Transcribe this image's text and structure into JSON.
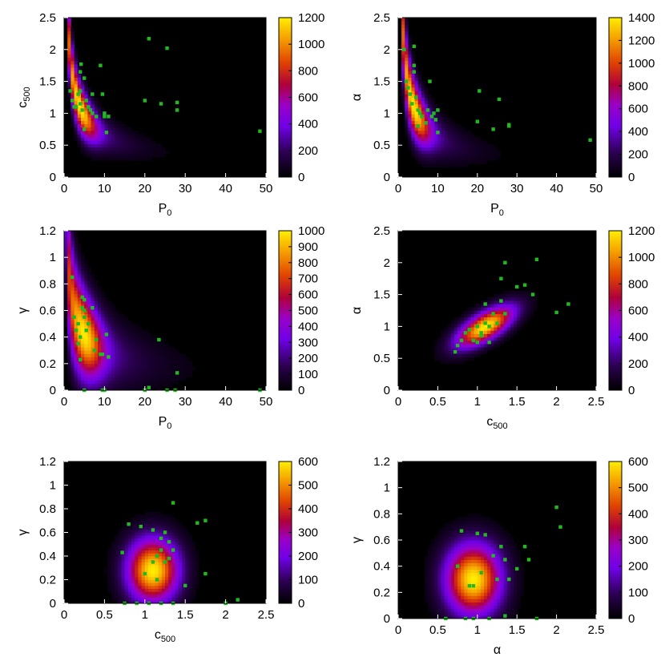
{
  "chart_data": [
    {
      "type": "heatmap",
      "xlabel": "P",
      "xlabel_sub": "0",
      "ylabel": "c",
      "ylabel_sub": "500",
      "xlim": [
        0,
        50
      ],
      "ylim": [
        0,
        2.5
      ],
      "xticks": [
        "0",
        "10",
        "20",
        "30",
        "40",
        "50"
      ],
      "yticks": [
        "0",
        "0.5",
        "1",
        "1.5",
        "2",
        "2.5"
      ],
      "colorbar": {
        "min": 0,
        "max": 1200,
        "ticks": [
          "0",
          "200",
          "400",
          "600",
          "800",
          "1000",
          "1200"
        ]
      },
      "density": {
        "shape": "curve_power",
        "center": [
          4.0,
          1.1
        ],
        "width": [
          2.6,
          0.2
        ],
        "tail": 0.55
      },
      "points": [
        [
          1.5,
          1.35
        ],
        [
          2,
          1.2
        ],
        [
          2.5,
          1.1
        ],
        [
          3,
          1.1
        ],
        [
          3.5,
          1.3
        ],
        [
          4,
          1.15
        ],
        [
          4,
          1.35
        ],
        [
          4,
          1.65
        ],
        [
          4.2,
          1.77
        ],
        [
          4.5,
          1.05
        ],
        [
          5,
          1.55
        ],
        [
          5,
          0.75
        ],
        [
          5.5,
          1.2
        ],
        [
          6,
          1.1
        ],
        [
          6.5,
          1.05
        ],
        [
          7,
          1.3
        ],
        [
          7,
          1.0
        ],
        [
          8,
          0.95
        ],
        [
          9,
          1.75
        ],
        [
          9.5,
          1.3
        ],
        [
          10,
          1.0
        ],
        [
          10,
          0.95
        ],
        [
          10.5,
          0.7
        ],
        [
          11,
          0.95
        ],
        [
          20,
          1.2
        ],
        [
          21,
          2.17
        ],
        [
          24,
          1.15
        ],
        [
          25.5,
          2.02
        ],
        [
          28,
          1.05
        ],
        [
          28,
          1.17
        ],
        [
          48.5,
          0.72
        ]
      ]
    },
    {
      "type": "heatmap",
      "xlabel": "P",
      "xlabel_sub": "0",
      "ylabel": "α",
      "ylabel_sub": "",
      "xlim": [
        0,
        50
      ],
      "ylim": [
        0,
        2.5
      ],
      "xticks": [
        "0",
        "10",
        "20",
        "30",
        "40",
        "50"
      ],
      "yticks": [
        "0",
        "0.5",
        "1",
        "1.5",
        "2",
        "2.5"
      ],
      "colorbar": {
        "min": 0,
        "max": 1400,
        "ticks": [
          "0",
          "200",
          "400",
          "600",
          "800",
          "1000",
          "1200",
          "1400"
        ]
      },
      "density": {
        "shape": "curve_power",
        "center": [
          4.0,
          1.1
        ],
        "width": [
          2.6,
          0.25
        ],
        "tail": 0.6
      },
      "points": [
        [
          1.5,
          2.0
        ],
        [
          2,
          1.5
        ],
        [
          2.5,
          1.4
        ],
        [
          3,
          1.3
        ],
        [
          3.5,
          1.15
        ],
        [
          4,
          1.65
        ],
        [
          4,
          1.75
        ],
        [
          4,
          2.05
        ],
        [
          4.5,
          1.25
        ],
        [
          5,
          0.8
        ],
        [
          5,
          1.05
        ],
        [
          5.5,
          1.0
        ],
        [
          6,
          0.95
        ],
        [
          7,
          0.85
        ],
        [
          7.5,
          1.05
        ],
        [
          8,
          1.5
        ],
        [
          8.5,
          0.95
        ],
        [
          9,
          1.0
        ],
        [
          9.5,
          0.9
        ],
        [
          10,
          0.7
        ],
        [
          10,
          1.05
        ],
        [
          20,
          0.87
        ],
        [
          20.5,
          1.35
        ],
        [
          24,
          0.75
        ],
        [
          25.5,
          1.22
        ],
        [
          28,
          0.8
        ],
        [
          28,
          0.82
        ],
        [
          48.5,
          0.58
        ]
      ]
    },
    {
      "type": "heatmap",
      "xlabel": "P",
      "xlabel_sub": "0",
      "ylabel": "γ",
      "ylabel_sub": "",
      "xlim": [
        0,
        50
      ],
      "ylim": [
        0,
        1.2
      ],
      "xticks": [
        "0",
        "10",
        "20",
        "30",
        "40",
        "50"
      ],
      "yticks": [
        "0",
        "0.2",
        "0.4",
        "0.6",
        "0.8",
        "1",
        "1.2"
      ],
      "colorbar": {
        "min": 0,
        "max": 1000,
        "ticks": [
          "0",
          "100",
          "200",
          "300",
          "400",
          "500",
          "600",
          "700",
          "800",
          "900",
          "1000"
        ]
      },
      "density": {
        "shape": "curve_gamma",
        "center": [
          5.0,
          0.42
        ],
        "width": [
          3.0,
          0.17
        ],
        "tail": 0.5
      },
      "points": [
        [
          2,
          0.85
        ],
        [
          2.5,
          0.55
        ],
        [
          3,
          0.45
        ],
        [
          3.5,
          0.5
        ],
        [
          3.5,
          0.35
        ],
        [
          4,
          0.4
        ],
        [
          4,
          0.23
        ],
        [
          4.5,
          0.7
        ],
        [
          4.5,
          0.62
        ],
        [
          5,
          0.68
        ],
        [
          5,
          0.6
        ],
        [
          5,
          0.55
        ],
        [
          5,
          0.0
        ],
        [
          5.5,
          0.45
        ],
        [
          6,
          0.5
        ],
        [
          7,
          0.62
        ],
        [
          7.5,
          0.3
        ],
        [
          8,
          0.38
        ],
        [
          9,
          0.27
        ],
        [
          9.5,
          0.27
        ],
        [
          9.5,
          0.0
        ],
        [
          10,
          0.0
        ],
        [
          10.5,
          0.42
        ],
        [
          11,
          0.25
        ],
        [
          20,
          0.0
        ],
        [
          21,
          0.02
        ],
        [
          23.5,
          0.38
        ],
        [
          25.5,
          0.0
        ],
        [
          27.5,
          0.0
        ],
        [
          28,
          0.13
        ],
        [
          48.5,
          0.0
        ]
      ]
    },
    {
      "type": "heatmap",
      "xlabel": "c",
      "xlabel_sub": "500",
      "ylabel": "α",
      "ylabel_sub": "",
      "xlim": [
        0,
        2.5
      ],
      "ylim": [
        0,
        2.5
      ],
      "xticks": [
        "0",
        "0.5",
        "1",
        "1.5",
        "2",
        "2.5"
      ],
      "yticks": [
        "0",
        "0.5",
        "1",
        "1.5",
        "2",
        "2.5"
      ],
      "colorbar": {
        "min": 0,
        "max": 1200,
        "ticks": [
          "0",
          "200",
          "400",
          "600",
          "800",
          "1000",
          "1200"
        ]
      },
      "density": {
        "shape": "tilted",
        "center": [
          1.1,
          1.0
        ],
        "width": [
          0.28,
          0.12
        ],
        "angle": 40
      },
      "points": [
        [
          0.72,
          0.6
        ],
        [
          0.75,
          0.7
        ],
        [
          0.8,
          0.78
        ],
        [
          0.85,
          0.9
        ],
        [
          0.9,
          0.95
        ],
        [
          0.95,
          0.78
        ],
        [
          1.0,
          0.75
        ],
        [
          1.0,
          1.0
        ],
        [
          1.05,
          0.9
        ],
        [
          1.05,
          0.85
        ],
        [
          1.1,
          1.05
        ],
        [
          1.1,
          1.35
        ],
        [
          1.15,
          1.0
        ],
        [
          1.15,
          0.75
        ],
        [
          1.2,
          1.2
        ],
        [
          1.25,
          1.05
        ],
        [
          1.3,
          1.4
        ],
        [
          1.3,
          1.75
        ],
        [
          1.35,
          1.2
        ],
        [
          1.35,
          2.0
        ],
        [
          1.5,
          1.62
        ],
        [
          1.6,
          1.65
        ],
        [
          1.7,
          1.5
        ],
        [
          1.75,
          2.05
        ],
        [
          2.0,
          1.22
        ],
        [
          2.15,
          1.35
        ]
      ]
    },
    {
      "type": "heatmap",
      "xlabel": "c",
      "xlabel_sub": "500",
      "ylabel": "γ",
      "ylabel_sub": "",
      "xlim": [
        0,
        2.5
      ],
      "ylim": [
        0,
        1.2
      ],
      "xticks": [
        "0",
        "0.5",
        "1",
        "1.5",
        "2",
        "2.5"
      ],
      "yticks": [
        "0",
        "0.2",
        "0.4",
        "0.6",
        "0.8",
        "1",
        "1.2"
      ],
      "colorbar": {
        "min": 0,
        "max": 600,
        "ticks": [
          "0",
          "100",
          "200",
          "300",
          "400",
          "500",
          "600"
        ]
      },
      "density": {
        "shape": "ellipse",
        "center": [
          1.1,
          0.28
        ],
        "width": [
          0.2,
          0.17
        ]
      },
      "points": [
        [
          0.72,
          0.43
        ],
        [
          0.75,
          0.0
        ],
        [
          0.8,
          0.67
        ],
        [
          0.9,
          0.0
        ],
        [
          0.95,
          0.65
        ],
        [
          1.0,
          0.25
        ],
        [
          1.05,
          0.0
        ],
        [
          1.1,
          0.35
        ],
        [
          1.1,
          0.62
        ],
        [
          1.15,
          0.4
        ],
        [
          1.15,
          0.2
        ],
        [
          1.2,
          0.0
        ],
        [
          1.2,
          0.45
        ],
        [
          1.2,
          0.55
        ],
        [
          1.25,
          0.6
        ],
        [
          1.25,
          0.35
        ],
        [
          1.3,
          0.52
        ],
        [
          1.3,
          0.38
        ],
        [
          1.35,
          0.45
        ],
        [
          1.35,
          0.85
        ],
        [
          1.35,
          0.0
        ],
        [
          1.5,
          0.15
        ],
        [
          1.65,
          0.68
        ],
        [
          1.75,
          0.7
        ],
        [
          1.75,
          0.25
        ],
        [
          2.0,
          0.0
        ],
        [
          2.15,
          0.03
        ]
      ]
    },
    {
      "type": "heatmap",
      "xlabel": "α",
      "xlabel_sub": "",
      "ylabel": "γ",
      "ylabel_sub": "",
      "xlim": [
        0,
        2.5
      ],
      "ylim": [
        0,
        1.2
      ],
      "xticks": [
        "0",
        "0.5",
        "1",
        "1.5",
        "2",
        "2.5"
      ],
      "yticks": [
        "0",
        "0.2",
        "0.4",
        "0.6",
        "0.8",
        "1",
        "1.2"
      ],
      "colorbar": {
        "min": 0,
        "max": 600,
        "ticks": [
          "0",
          "100",
          "200",
          "300",
          "400",
          "500",
          "600"
        ]
      },
      "density": {
        "shape": "ellipse",
        "center": [
          0.95,
          0.3
        ],
        "width": [
          0.22,
          0.17
        ]
      },
      "points": [
        [
          0.6,
          0.0
        ],
        [
          0.75,
          0.4
        ],
        [
          0.8,
          0.67
        ],
        [
          0.85,
          0.0
        ],
        [
          0.9,
          0.25
        ],
        [
          0.95,
          0.25
        ],
        [
          0.95,
          0.0
        ],
        [
          1.0,
          0.65
        ],
        [
          1.05,
          0.35
        ],
        [
          1.1,
          0.64
        ],
        [
          1.15,
          0.0
        ],
        [
          1.2,
          0.48
        ],
        [
          1.25,
          0.3
        ],
        [
          1.3,
          0.55
        ],
        [
          1.35,
          0.45
        ],
        [
          1.35,
          0.02
        ],
        [
          1.4,
          0.3
        ],
        [
          1.5,
          0.38
        ],
        [
          1.6,
          0.55
        ],
        [
          1.65,
          0.45
        ],
        [
          1.75,
          0.0
        ],
        [
          2.0,
          0.85
        ],
        [
          2.05,
          0.7
        ]
      ]
    }
  ]
}
